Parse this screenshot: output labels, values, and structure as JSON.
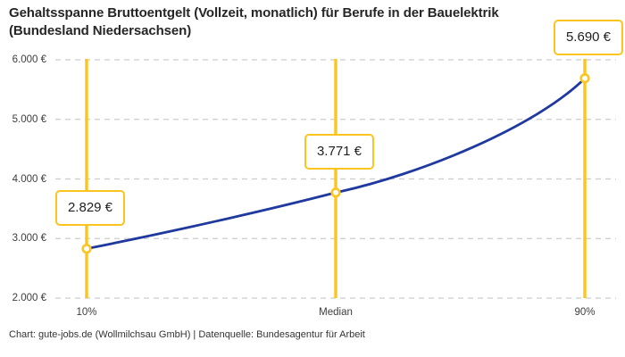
{
  "header": {
    "title": "Gehaltsspanne Bruttoentgelt (Vollzeit, monatlich) für Berufe in der Bauelektrik\n(Bundesland Niedersachsen)"
  },
  "footer": {
    "credit": "Chart: gute-jobs.de (Wollmilchsau GmbH) | Datenquelle: Bundesagentur für Arbeit"
  },
  "chart_data": {
    "type": "line",
    "title": "Gehaltsspanne Bruttoentgelt (Vollzeit, monatlich) für Berufe in der Bauelektrik (Bundesland Niedersachsen)",
    "categories": [
      "10%",
      "Median",
      "90%"
    ],
    "series": [
      {
        "values": [
          2829,
          3771,
          5690
        ],
        "point_labels": [
          "2.829 €",
          "3.771 €",
          "5.690 €"
        ]
      }
    ],
    "ylim": [
      2000,
      6000
    ],
    "yticks": [
      2000,
      3000,
      4000,
      5000,
      6000
    ],
    "ytick_labels": [
      "2.000 €",
      "3.000 €",
      "4.000 €",
      "5.000 €",
      "6.000 €"
    ],
    "grid": "horizontal-dashed",
    "legend": "none",
    "colors": {
      "line": "#20399f",
      "accent": "#fcc41f",
      "marker_fill": "#ffffff",
      "grid": "#cccccc"
    }
  }
}
